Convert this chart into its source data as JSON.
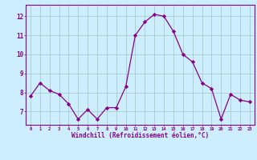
{
  "x": [
    0,
    1,
    2,
    3,
    4,
    5,
    6,
    7,
    8,
    9,
    10,
    11,
    12,
    13,
    14,
    15,
    16,
    17,
    18,
    19,
    20,
    21,
    22,
    23
  ],
  "y": [
    7.8,
    8.5,
    8.1,
    7.9,
    7.4,
    6.6,
    7.1,
    6.6,
    7.2,
    7.2,
    8.3,
    11.0,
    11.7,
    12.1,
    12.0,
    11.2,
    10.0,
    9.6,
    8.5,
    8.2,
    6.6,
    7.9,
    7.6,
    7.5
  ],
  "line_color": "#880088",
  "marker": "D",
  "marker_size": 2.2,
  "bg_color": "#cceeff",
  "grid_color": "#aacccc",
  "xlabel": "Windchill (Refroidissement éolien,°C)",
  "xlabel_color": "#880088",
  "ylabel_ticks": [
    7,
    8,
    9,
    10,
    11,
    12
  ],
  "ylim": [
    6.3,
    12.6
  ],
  "xlim": [
    -0.5,
    23.5
  ],
  "tick_color": "#880088",
  "spine_color": "#880088"
}
